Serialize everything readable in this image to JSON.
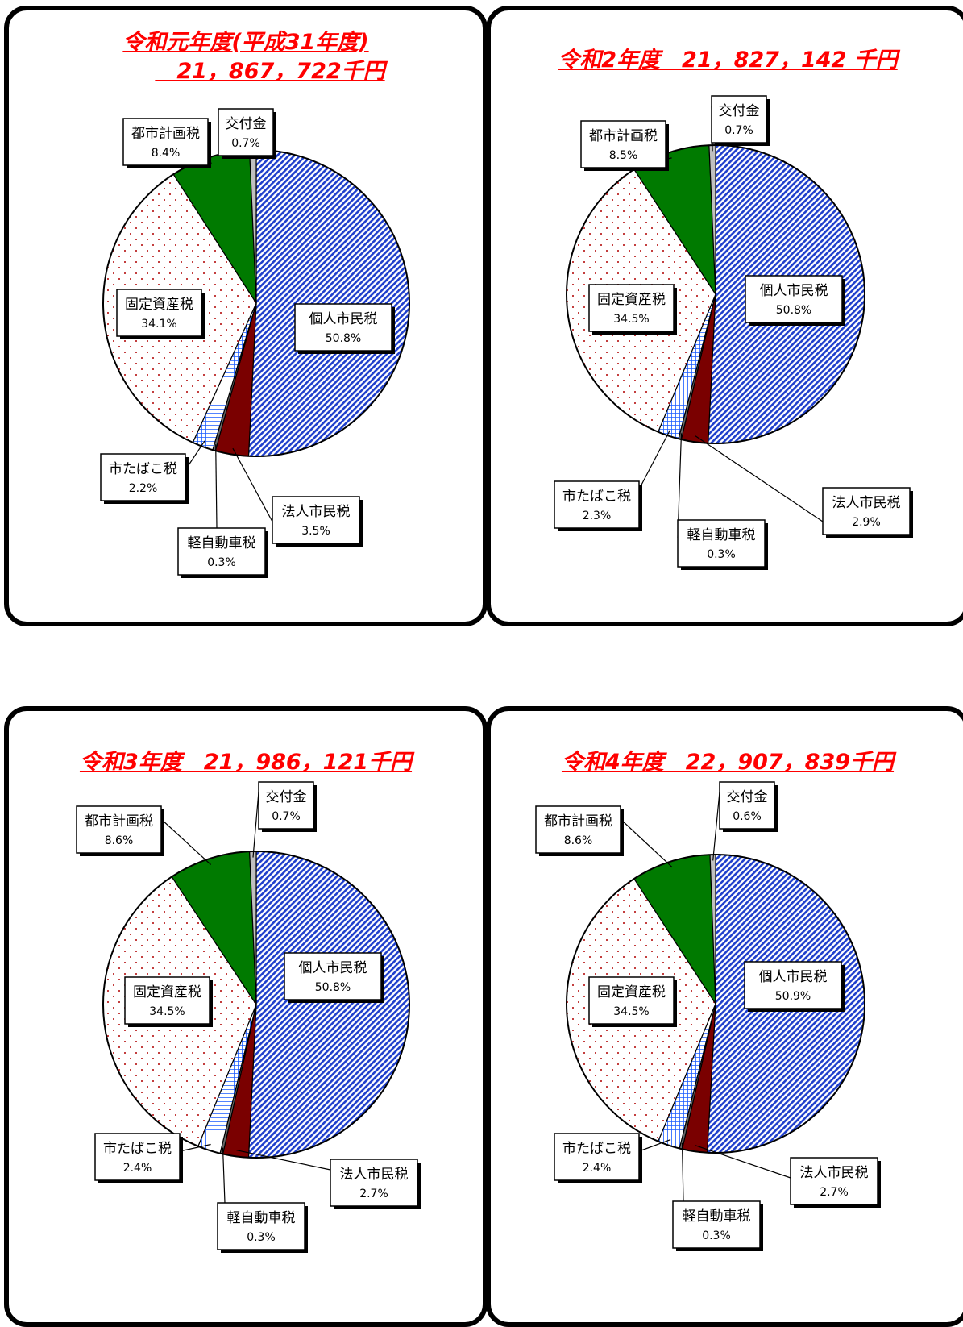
{
  "colors": {
    "title": "#ff0000",
    "個人市民税": "#1f3fcc",
    "法人市民税": "#7a0000",
    "軽自動車税": "#666666",
    "市たばこ税": "#1a5cff",
    "固定資産税": "#b00000",
    "都市計画税": "#007a00",
    "交付金": "#c0c0c0"
  },
  "chart_data": [
    {
      "type": "pie",
      "title_lines": [
        "令和元年度(平成31年度)",
        "　21，867，722千円"
      ],
      "slices": [
        {
          "label": "個人市民税",
          "value": 50.8,
          "pct": "50.8%"
        },
        {
          "label": "法人市民税",
          "value": 3.5,
          "pct": "3.5%"
        },
        {
          "label": "軽自動車税",
          "value": 0.3,
          "pct": "0.3%"
        },
        {
          "label": "市たばこ税",
          "value": 2.2,
          "pct": "2.2%"
        },
        {
          "label": "固定資産税",
          "value": 34.1,
          "pct": "34.1%"
        },
        {
          "label": "都市計画税",
          "value": 8.4,
          "pct": "8.4%"
        },
        {
          "label": "交付金",
          "value": 0.7,
          "pct": "0.7%"
        }
      ]
    },
    {
      "type": "pie",
      "title_lines": [
        "令和2年度　21，827，142 千円"
      ],
      "slices": [
        {
          "label": "個人市民税",
          "value": 50.8,
          "pct": "50.8%"
        },
        {
          "label": "法人市民税",
          "value": 2.9,
          "pct": "2.9%"
        },
        {
          "label": "軽自動車税",
          "value": 0.3,
          "pct": "0.3%"
        },
        {
          "label": "市たばこ税",
          "value": 2.3,
          "pct": "2.3%"
        },
        {
          "label": "固定資産税",
          "value": 34.5,
          "pct": "34.5%"
        },
        {
          "label": "都市計画税",
          "value": 8.5,
          "pct": "8.5%"
        },
        {
          "label": "交付金",
          "value": 0.7,
          "pct": "0.7%"
        }
      ]
    },
    {
      "type": "pie",
      "title_lines": [
        "令和3年度　21，986，121千円"
      ],
      "slices": [
        {
          "label": "個人市民税",
          "value": 50.8,
          "pct": "50.8%"
        },
        {
          "label": "法人市民税",
          "value": 2.7,
          "pct": "2.7%"
        },
        {
          "label": "軽自動車税",
          "value": 0.3,
          "pct": "0.3%"
        },
        {
          "label": "市たばこ税",
          "value": 2.4,
          "pct": "2.4%"
        },
        {
          "label": "固定資産税",
          "value": 34.5,
          "pct": "34.5%"
        },
        {
          "label": "都市計画税",
          "value": 8.6,
          "pct": "8.6%"
        },
        {
          "label": "交付金",
          "value": 0.7,
          "pct": "0.7%"
        }
      ]
    },
    {
      "type": "pie",
      "title_lines": [
        "令和4年度　22，907，839千円"
      ],
      "slices": [
        {
          "label": "個人市民税",
          "value": 50.9,
          "pct": "50.9%"
        },
        {
          "label": "法人市民税",
          "value": 2.7,
          "pct": "2.7%"
        },
        {
          "label": "軽自動車税",
          "value": 0.3,
          "pct": "0.3%"
        },
        {
          "label": "市たばこ税",
          "value": 2.4,
          "pct": "2.4%"
        },
        {
          "label": "固定資産税",
          "value": 34.5,
          "pct": "34.5%"
        },
        {
          "label": "都市計画税",
          "value": 8.6,
          "pct": "8.6%"
        },
        {
          "label": "交付金",
          "value": 0.6,
          "pct": "0.6%"
        }
      ]
    }
  ]
}
